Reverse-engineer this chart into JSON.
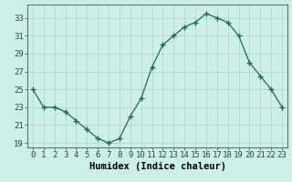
{
  "x": [
    0,
    1,
    2,
    3,
    4,
    5,
    6,
    7,
    8,
    9,
    10,
    11,
    12,
    13,
    14,
    15,
    16,
    17,
    18,
    19,
    20,
    21,
    22,
    23
  ],
  "y": [
    25,
    23,
    23,
    22.5,
    21.5,
    20.5,
    19.5,
    19,
    19.5,
    22,
    24,
    27.5,
    30,
    31,
    32,
    32.5,
    33.5,
    33,
    32.5,
    31,
    28,
    26.5,
    25,
    23
  ],
  "line_color": "#1a6b5a",
  "marker": "+",
  "marker_size": 5,
  "bg_color": "#ceeee8",
  "grid_color": "#b0d8d2",
  "xlabel": "Humidex (Indice chaleur)",
  "xlim": [
    -0.5,
    23.5
  ],
  "ylim": [
    18.5,
    34.5
  ],
  "yticks": [
    19,
    21,
    23,
    25,
    27,
    29,
    31,
    33
  ],
  "xticks": [
    0,
    1,
    2,
    3,
    4,
    5,
    6,
    7,
    8,
    9,
    10,
    11,
    12,
    13,
    14,
    15,
    16,
    17,
    18,
    19,
    20,
    21,
    22,
    23
  ],
  "tick_labelsize": 6.5,
  "xlabel_fontsize": 7.5
}
